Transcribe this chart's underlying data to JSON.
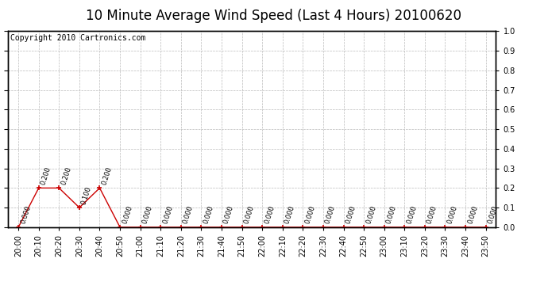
{
  "title": "10 Minute Average Wind Speed (Last 4 Hours) 20100620",
  "copyright": "Copyright 2010 Cartronics.com",
  "x_labels": [
    "20:00",
    "20:10",
    "20:20",
    "20:30",
    "20:40",
    "20:50",
    "21:00",
    "21:10",
    "21:20",
    "21:30",
    "21:40",
    "21:50",
    "22:00",
    "22:10",
    "22:20",
    "22:30",
    "22:40",
    "22:50",
    "23:00",
    "23:10",
    "23:20",
    "23:30",
    "23:40",
    "23:50"
  ],
  "y_values": [
    0.0,
    0.2,
    0.2,
    0.1,
    0.2,
    0.0,
    0.0,
    0.0,
    0.0,
    0.0,
    0.0,
    0.0,
    0.0,
    0.0,
    0.0,
    0.0,
    0.0,
    0.0,
    0.0,
    0.0,
    0.0,
    0.0,
    0.0,
    0.0
  ],
  "line_color": "#cc0000",
  "marker": "+",
  "marker_size": 5,
  "ylim": [
    0.0,
    1.0
  ],
  "yticks": [
    0.0,
    0.1,
    0.2,
    0.3,
    0.4,
    0.5,
    0.6,
    0.7,
    0.8,
    0.9,
    1.0
  ],
  "ytick_labels": [
    "0.0",
    "0.1",
    "0.2",
    "0.3",
    "0.4",
    "0.5",
    "0.6",
    "0.7",
    "0.8",
    "0.9",
    "1.0"
  ],
  "grid_color": "#bbbbbb",
  "bg_color": "#ffffff",
  "plot_bg_color": "#ffffff",
  "title_fontsize": 12,
  "copyright_fontsize": 7,
  "label_fontsize": 7,
  "annotation_fontsize": 6
}
